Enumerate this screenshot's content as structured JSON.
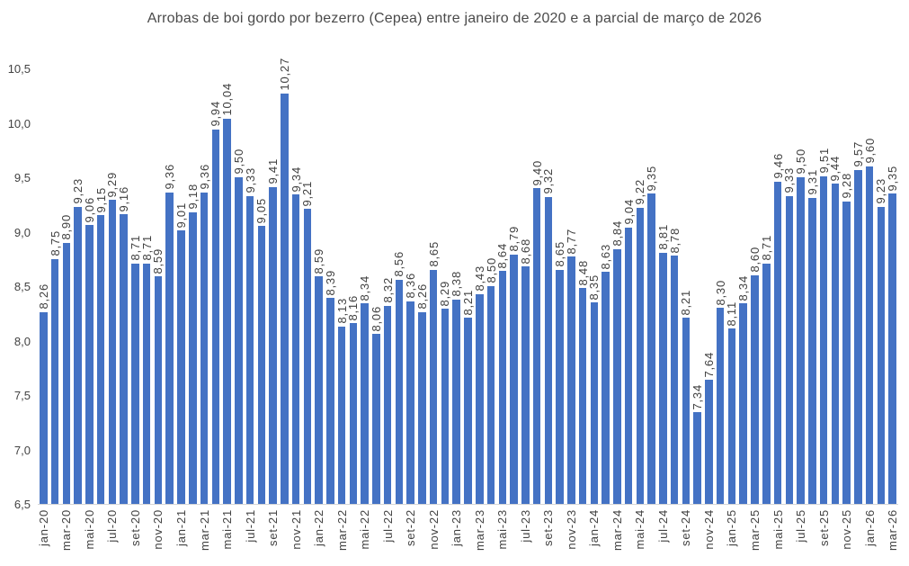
{
  "chart_data": {
    "type": "bar",
    "title": "Arrobas de boi gordo por bezerro (Cepea) entre janeiro de 2020 e a parcial de março de 2026",
    "categories": [
      "jan-20",
      "fev-20",
      "mar-20",
      "abr-20",
      "mai-20",
      "jun-20",
      "jul-20",
      "ago-20",
      "set-20",
      "out-20",
      "nov-20",
      "dez-20",
      "jan-21",
      "fev-21",
      "mar-21",
      "abr-21",
      "mai-21",
      "jun-21",
      "jul-21",
      "ago-21",
      "set-21",
      "out-21",
      "nov-21",
      "dez-21",
      "jan-22",
      "fev-22",
      "mar-22",
      "abr-22",
      "mai-22",
      "jun-22",
      "jul-22",
      "ago-22",
      "set-22",
      "out-22",
      "nov-22",
      "dez-22",
      "jan-23",
      "fev-23",
      "mar-23",
      "abr-23",
      "mai-23",
      "jun-23",
      "jul-23",
      "ago-23",
      "set-23",
      "out-23",
      "nov-23",
      "dez-23",
      "jan-24",
      "fev-24",
      "mar-24",
      "abr-24",
      "mai-24",
      "jun-24",
      "jul-24",
      "ago-24",
      "set-24",
      "out-24",
      "nov-24",
      "dez-24",
      "jan-25",
      "fev-25",
      "mar-25",
      "abr-25",
      "mai-25",
      "jun-25",
      "jul-25",
      "ago-25",
      "set-25",
      "out-25",
      "nov-25",
      "dez-25",
      "jan-26",
      "fev-26",
      "mar-26"
    ],
    "values": [
      8.26,
      8.75,
      8.9,
      9.23,
      9.06,
      9.15,
      9.29,
      9.16,
      8.71,
      8.71,
      8.59,
      9.36,
      9.01,
      9.18,
      9.36,
      9.94,
      10.04,
      9.5,
      9.33,
      9.05,
      9.41,
      10.27,
      9.34,
      9.21,
      8.59,
      8.39,
      8.13,
      8.16,
      8.34,
      8.06,
      8.32,
      8.56,
      8.36,
      8.26,
      8.65,
      8.29,
      8.38,
      8.21,
      8.43,
      8.5,
      8.64,
      8.79,
      8.68,
      9.4,
      9.32,
      8.65,
      8.77,
      8.48,
      8.35,
      8.63,
      8.84,
      9.04,
      9.22,
      9.35,
      8.81,
      8.78,
      8.21,
      7.34,
      7.64,
      8.3,
      8.11,
      8.34,
      8.6,
      8.71,
      9.46,
      9.33,
      9.5,
      9.31,
      9.51,
      9.44,
      9.28,
      9.57,
      9.6,
      9.23,
      9.35
    ],
    "value_labels": [
      "8,26",
      "8,75",
      "8,90",
      "9,23",
      "9,06",
      "9,15",
      "9,29",
      "9,16",
      "8,71",
      "8,71",
      "8,59",
      "9,36",
      "9,01",
      "9,18",
      "9,36",
      "9,94",
      "10,04",
      "9,50",
      "9,33",
      "9,05",
      "9,41",
      "10,27",
      "9,34",
      "9,21",
      "8,59",
      "8,39",
      "8,13",
      "8,16",
      "8,34",
      "8,06",
      "8,32",
      "8,56",
      "8,36",
      "8,26",
      "8,65",
      "8,29",
      "8,38",
      "8,21",
      "8,43",
      "8,50",
      "8,64",
      "8,79",
      "8,68",
      "9,40",
      "9,32",
      "8,65",
      "8,77",
      "8,48",
      "8,35",
      "8,63",
      "8,84",
      "9,04",
      "9,22",
      "9,35",
      "8,81",
      "8,78",
      "8,21",
      "7,34",
      "7,64",
      "8,30",
      "8,11",
      "8,34",
      "8,60",
      "8,71",
      "9,46",
      "9,33",
      "9,50",
      "9,31",
      "9,51",
      "9,44",
      "9,28",
      "9,57",
      "9,60",
      "9,23",
      "9,35"
    ],
    "x_tick_labels": [
      "jan-20",
      "mar-20",
      "mai-20",
      "jul-20",
      "set-20",
      "nov-20",
      "jan-21",
      "mar-21",
      "mai-21",
      "jul-21",
      "set-21",
      "nov-21",
      "jan-22",
      "mar-22",
      "mai-22",
      "jul-22",
      "set-22",
      "nov-22",
      "jan-23",
      "mar-23",
      "mai-23",
      "jul-23",
      "set-23",
      "nov-23",
      "jan-24",
      "mar-24",
      "mai-24",
      "jul-24",
      "set-24",
      "nov-24",
      "jan-25",
      "mar-25",
      "mai-25",
      "jul-25",
      "set-25",
      "nov-25",
      "jan-26",
      "mar-26"
    ],
    "x_tick_step": 2,
    "y_ticks": [
      "6,5",
      "7,0",
      "7,5",
      "8,0",
      "8,5",
      "9,0",
      "9,5",
      "10,0",
      "10,5"
    ],
    "y_tick_values": [
      6.5,
      7.0,
      7.5,
      8.0,
      8.5,
      9.0,
      9.5,
      10.0,
      10.5
    ],
    "ylim": [
      6.5,
      10.5
    ],
    "xlabel": "",
    "ylabel": "",
    "grid": false,
    "legend": null,
    "bar_color": "#4472C4",
    "label_color": "#404040",
    "axis_line_color": "#d6d6d6",
    "background_color": "#ffffff"
  }
}
